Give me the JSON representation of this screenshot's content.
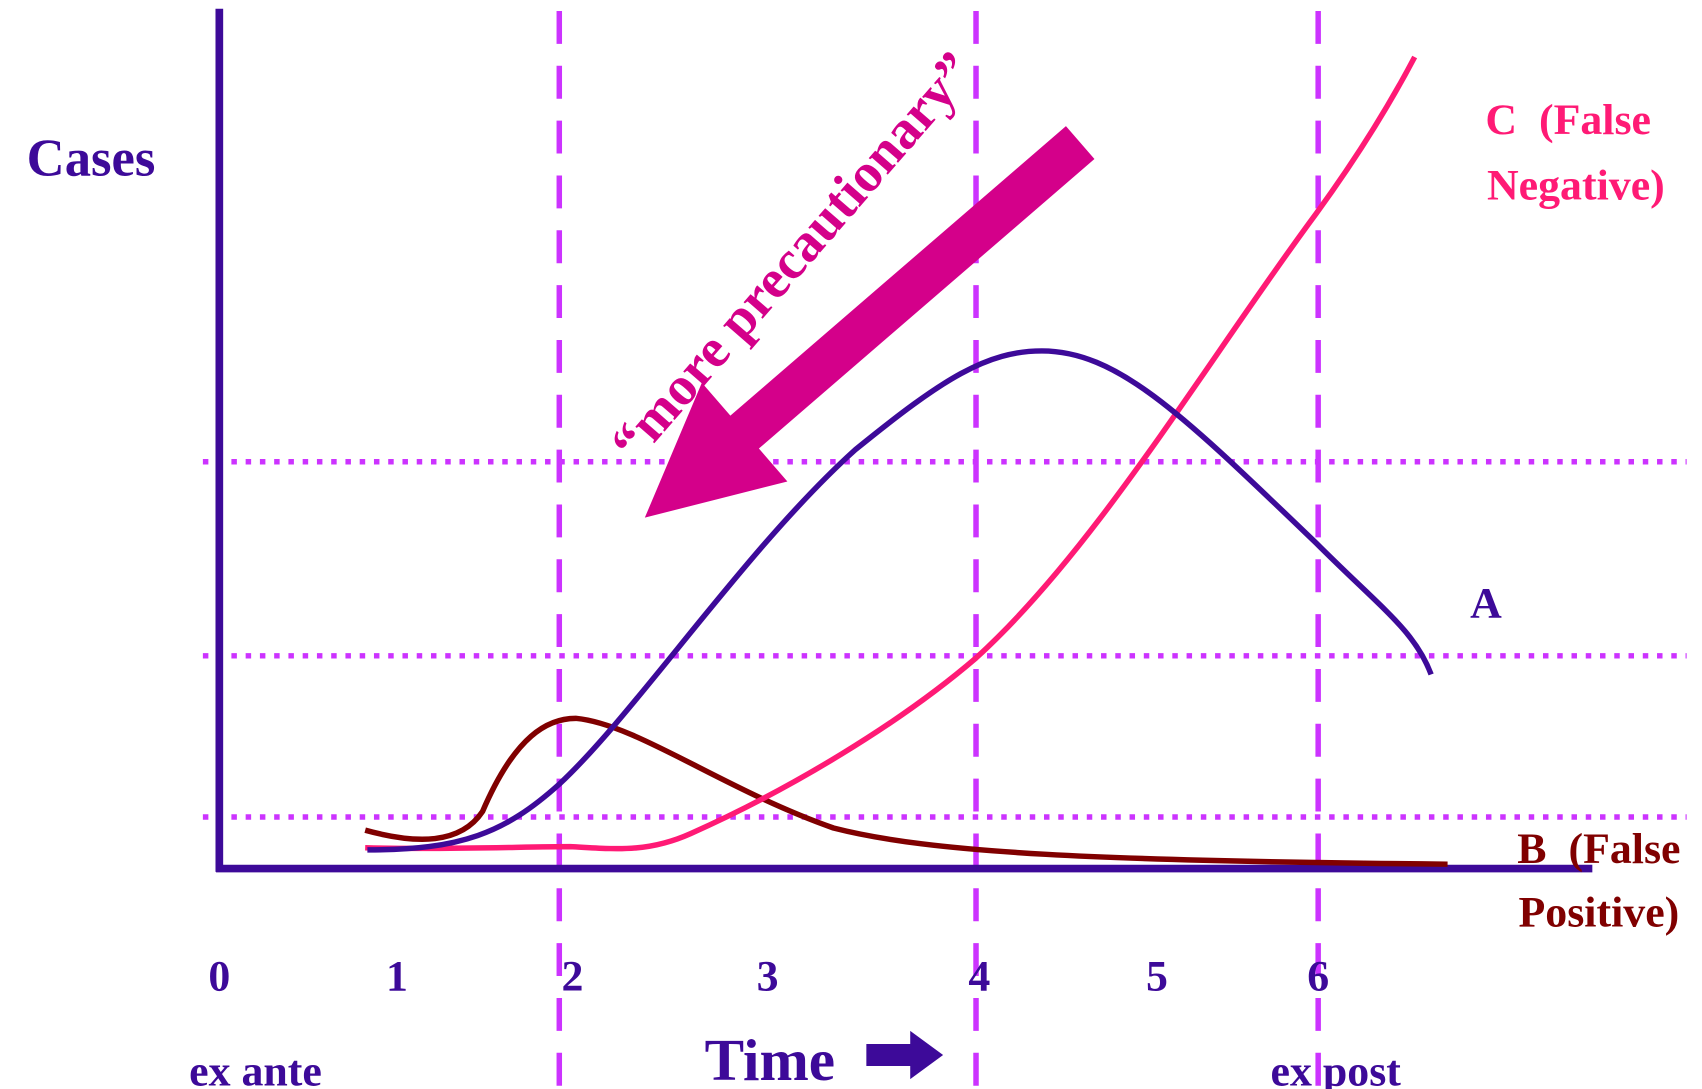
{
  "y_axis_label": "Cases",
  "x_axis_label": "Time",
  "x_ticks": [
    "0",
    "1",
    "2",
    "3",
    "4",
    "5",
    "6"
  ],
  "start_label": "ex ante",
  "end_label": "ex post",
  "arrow_label": "“more precautionary”",
  "curves": [
    {
      "lines": [
        "C  (False",
        "Negative)"
      ]
    },
    {
      "lines": [
        "A"
      ]
    },
    {
      "lines": [
        "B  (False",
        "Positive)"
      ]
    }
  ]
}
